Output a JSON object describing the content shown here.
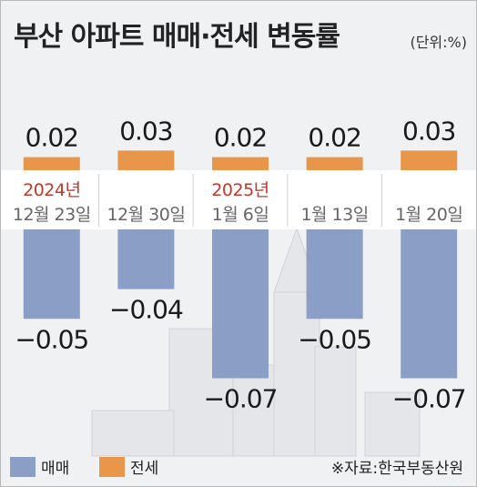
{
  "title": "부산 아파트 매매·전세 변동률",
  "unit": "(단위:%)",
  "colors": {
    "sale": "#8a9ec6",
    "jeonse": "#e8974a",
    "background": "#f0f1f3",
    "band": "#ffffff",
    "year": "#c0392b"
  },
  "legend": {
    "sale": "매매",
    "jeonse": "전세"
  },
  "source": "※자료:한국부동산원",
  "chart_data": {
    "type": "bar",
    "categories": [
      "12월 23일",
      "12월 30일",
      "1월 6일",
      "1월 13일",
      "1월 20일"
    ],
    "year_labels": [
      "2024년",
      "",
      "2025년",
      "",
      ""
    ],
    "series": [
      {
        "name": "매매",
        "values": [
          -0.05,
          -0.04,
          -0.07,
          -0.05,
          -0.07
        ]
      },
      {
        "name": "전세",
        "values": [
          0.02,
          0.03,
          0.02,
          0.02,
          0.03
        ]
      }
    ],
    "grid": false,
    "legend_position": "bottom-left"
  }
}
